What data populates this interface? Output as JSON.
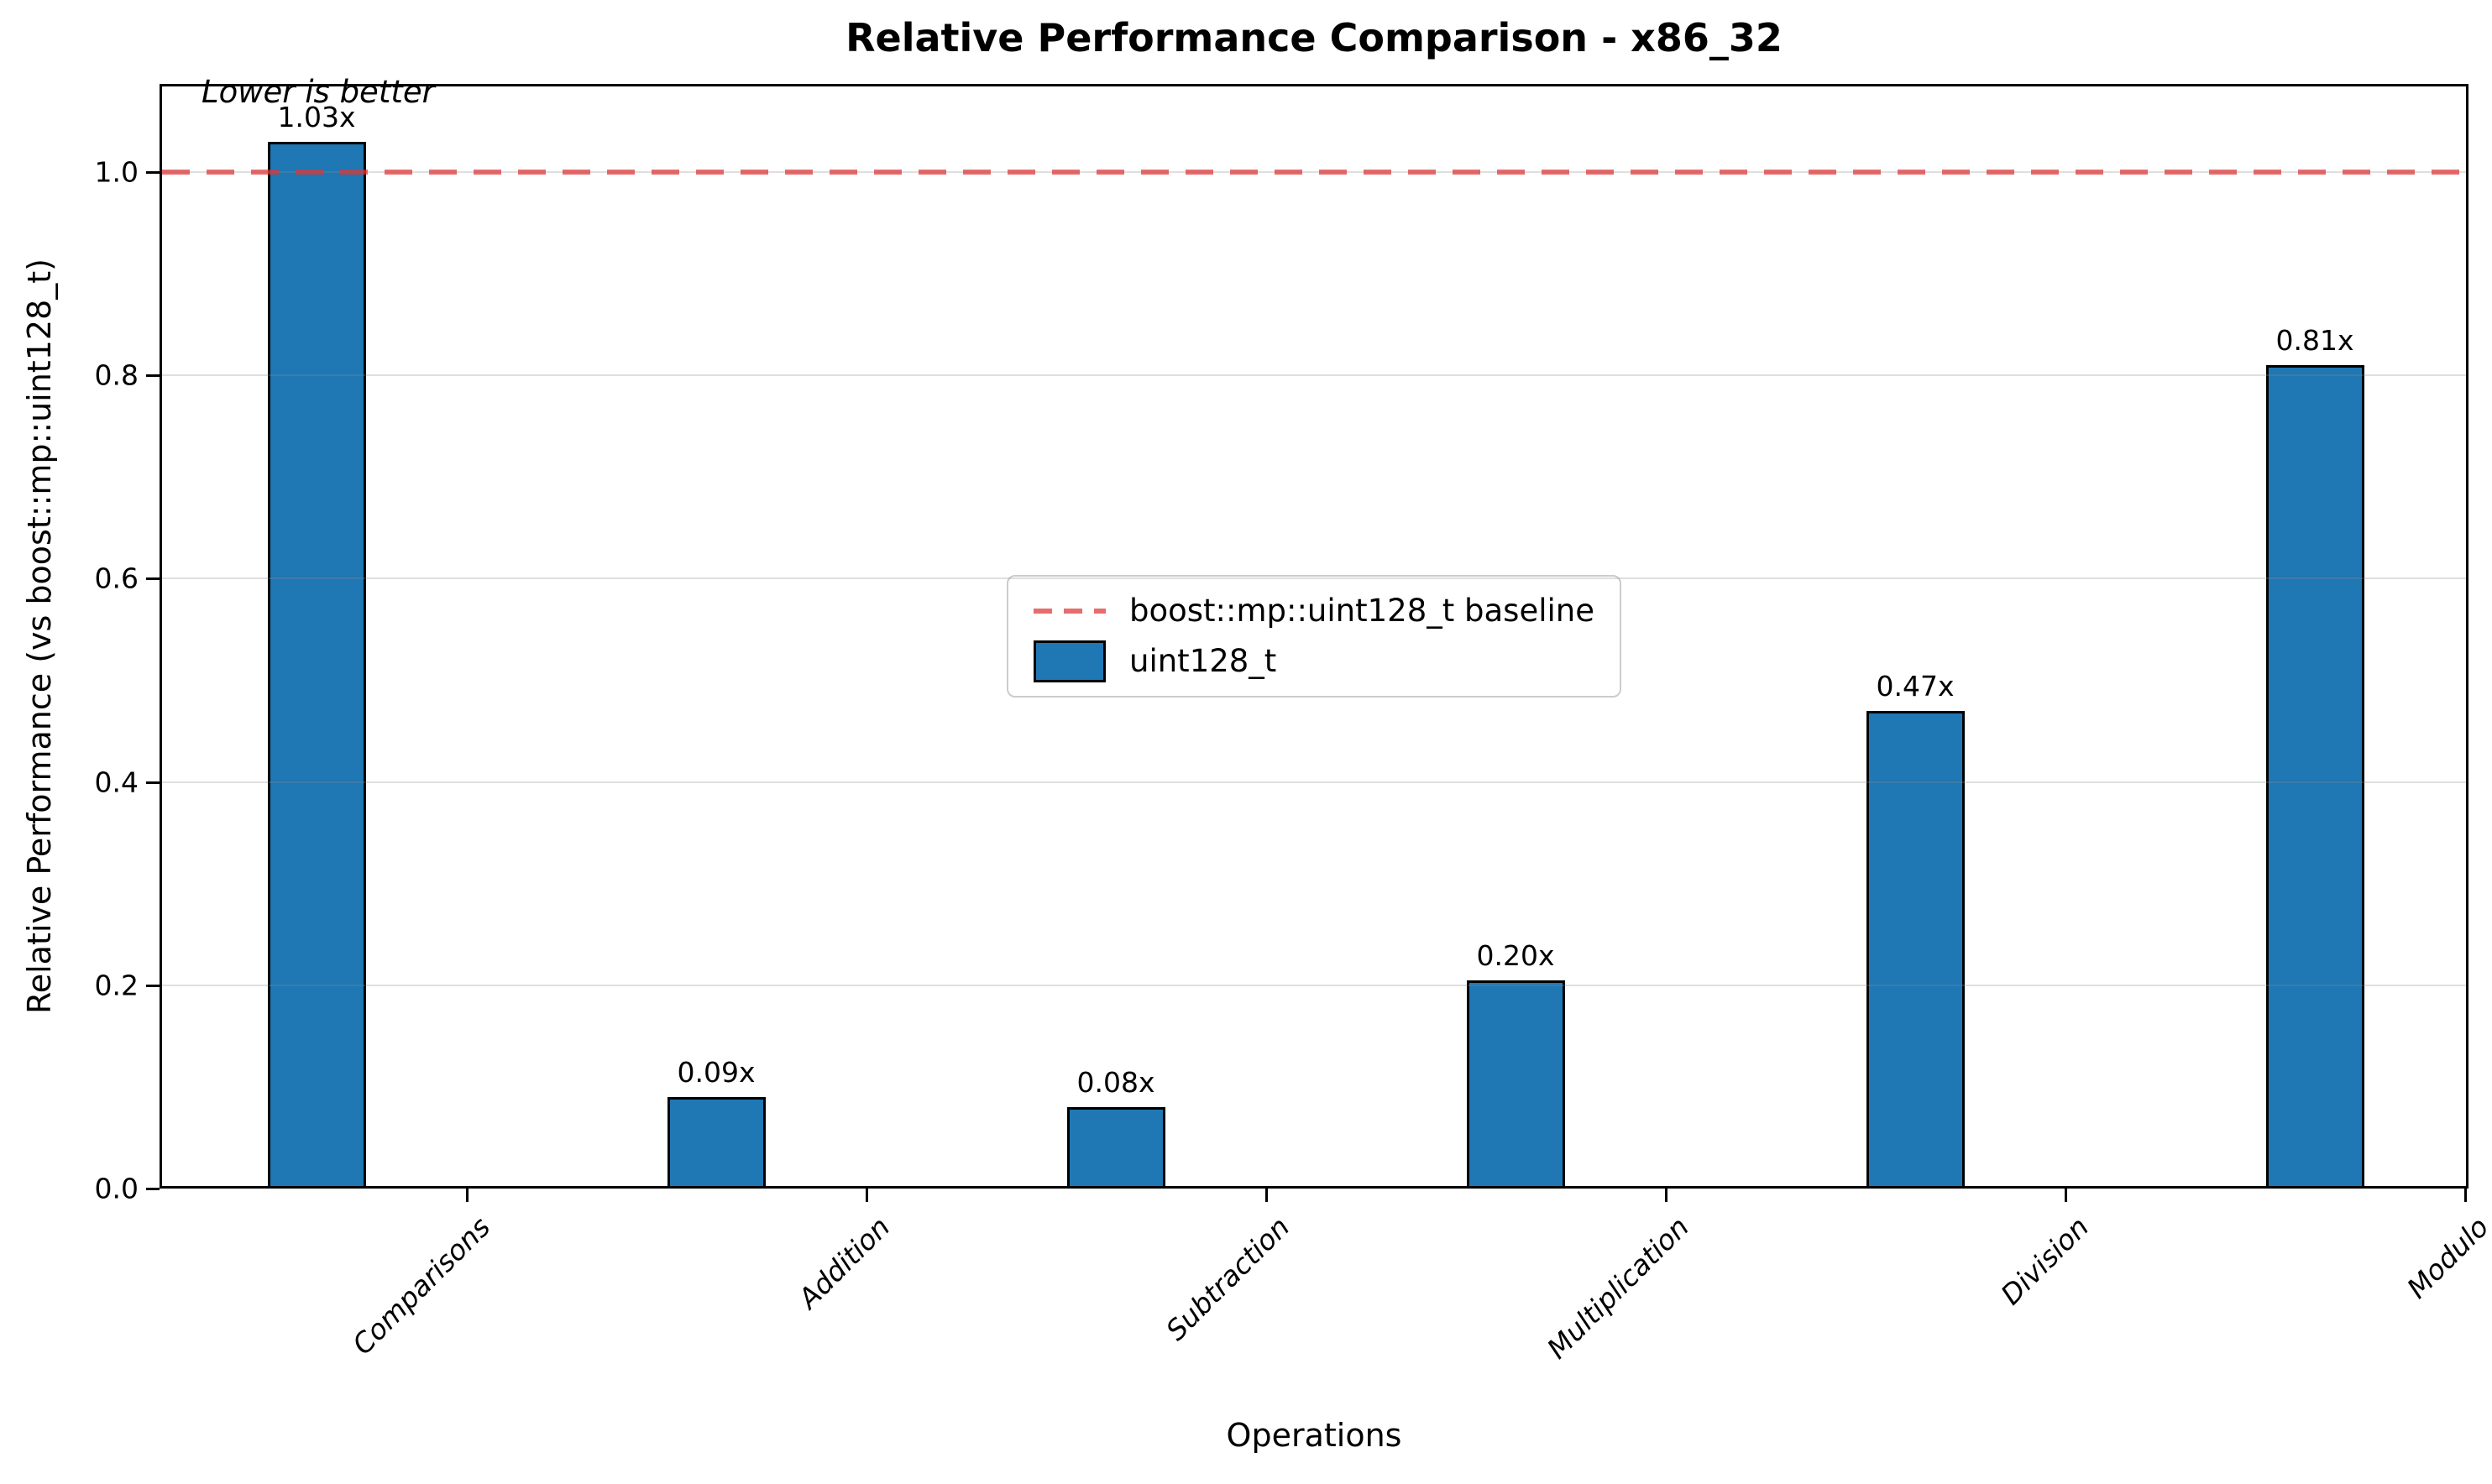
{
  "chart_data": {
    "type": "bar",
    "title": "Relative Performance Comparison - x86_32",
    "xlabel": "Operations",
    "ylabel": "Relative Performance (vs boost::mp::uint128_t)",
    "annotation": "Lower is better",
    "categories": [
      "Comparisons",
      "Addition",
      "Subtraction",
      "Multiplication",
      "Division",
      "Modulo"
    ],
    "series": [
      {
        "name": "uint128_t",
        "values": [
          1.03,
          0.09,
          0.08,
          0.205,
          0.47,
          0.81
        ]
      }
    ],
    "bar_labels": [
      "1.03x",
      "0.09x",
      "0.08x",
      "0.20x",
      "0.47x",
      "0.81x"
    ],
    "baseline": {
      "value": 1.0,
      "label": "boost::mp::uint128_t baseline",
      "style": "dashed"
    },
    "legend": {
      "position": "center",
      "entries": [
        "boost::mp::uint128_t baseline",
        "uint128_t"
      ]
    },
    "yticks": [
      0.0,
      0.2,
      0.4,
      0.6,
      0.8,
      1.0
    ],
    "ylim": [
      0,
      1.087
    ],
    "grid": true,
    "colors": {
      "bar": "#1f77b4",
      "bar_edge": "#000000",
      "baseline": "#dc3434",
      "grid": "#d9d9d9"
    }
  }
}
